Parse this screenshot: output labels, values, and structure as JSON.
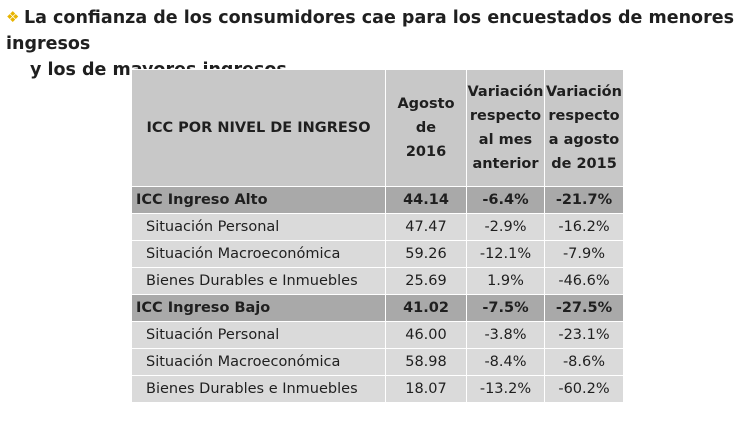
{
  "heading": {
    "bullet": "❖",
    "line1": "La confianza de los consumidores cae para los encuestados de menores ingresos",
    "line2": "y los de mayores ingresos."
  },
  "table": {
    "headers": {
      "label": "ICC POR NIVEL DE INGRESO",
      "aug2016": [
        "Agosto de",
        "2016"
      ],
      "var_month": [
        "Variación",
        "respecto",
        "al mes",
        "anterior"
      ],
      "var_year": [
        "Variación",
        "respecto",
        "a agosto",
        "de 2015"
      ]
    },
    "rows": [
      {
        "label": "ICC Ingreso Alto",
        "aug2016": "44.14",
        "var_month": "-6.4%",
        "var_year": "-21.7%"
      },
      {
        "label": "Situación Personal",
        "aug2016": "47.47",
        "var_month": "-2.9%",
        "var_year": "-16.2%"
      },
      {
        "label": "Situación Macroeconómica",
        "aug2016": "59.26",
        "var_month": "-12.1%",
        "var_year": "-7.9%"
      },
      {
        "label": "Bienes Durables e Inmuebles",
        "aug2016": "25.69",
        "var_month": "1.9%",
        "var_year": "-46.6%"
      },
      {
        "label": "ICC Ingreso Bajo",
        "aug2016": "41.02",
        "var_month": "-7.5%",
        "var_year": "-27.5%"
      },
      {
        "label": "Situación Personal",
        "aug2016": "46.00",
        "var_month": "-3.8%",
        "var_year": "-23.1%"
      },
      {
        "label": "Situación Macroeconómica",
        "aug2016": "58.98",
        "var_month": "-8.4%",
        "var_year": "-8.6%"
      },
      {
        "label": "Bienes Durables e Inmuebles",
        "aug2016": "18.07",
        "var_month": "-13.2%",
        "var_year": "-60.2%"
      }
    ]
  },
  "colors": {
    "bullet": "#e8b400",
    "header_bg": "#c8c8c8",
    "group_row_bg": "#a9a9a9",
    "sub_row_bg": "#dadada"
  }
}
